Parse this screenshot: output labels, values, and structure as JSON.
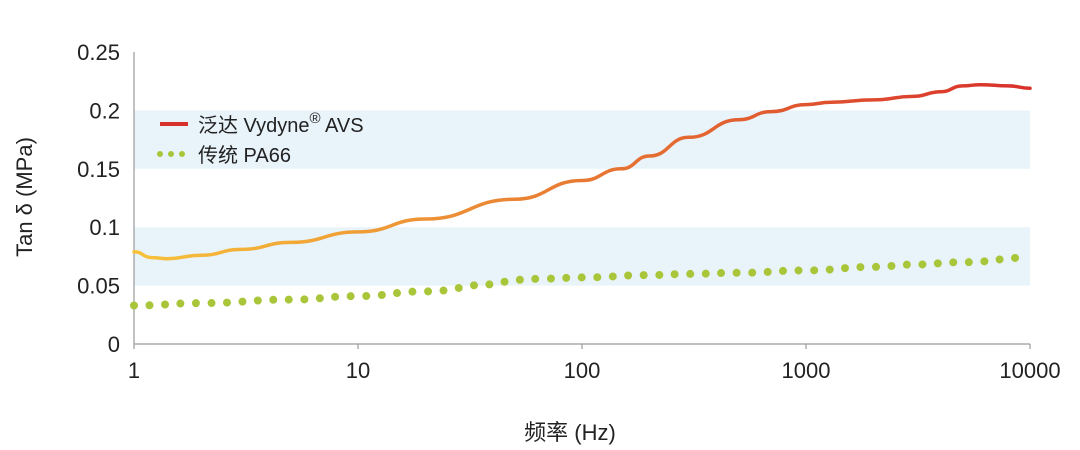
{
  "chart_data": {
    "type": "line",
    "xlabel": "频率 (Hz)",
    "ylabel": "Tan δ (MPa)",
    "x_scale": "log",
    "xlim": [
      1,
      10000
    ],
    "ylim": [
      0,
      0.25
    ],
    "x_ticks": [
      "1",
      "10",
      "100",
      "1000",
      "10000"
    ],
    "y_ticks": [
      "0",
      "0.05",
      "0.1",
      "0.15",
      "0.2",
      "0.25"
    ],
    "grid": "alternating horizontal bands",
    "legend_position": "top-left",
    "colors": {
      "band": "#e8f3fa",
      "series1_start": "#f7c23a",
      "series1_end": "#d8302b",
      "series2": "#a9c63a"
    },
    "series": [
      {
        "name": "泛达 Vydyne",
        "name_superscript": "®",
        "name_suffix": " AVS",
        "style": "solid",
        "x": [
          1,
          1.2,
          1.4,
          2,
          3,
          5,
          10,
          20,
          50,
          100,
          150,
          200,
          300,
          500,
          700,
          1000,
          1300,
          2000,
          3000,
          4000,
          5000,
          6000,
          8000,
          10000
        ],
        "y": [
          0.079,
          0.074,
          0.073,
          0.076,
          0.081,
          0.087,
          0.096,
          0.107,
          0.124,
          0.14,
          0.15,
          0.161,
          0.177,
          0.192,
          0.199,
          0.205,
          0.207,
          0.209,
          0.212,
          0.216,
          0.221,
          0.222,
          0.221,
          0.219
        ]
      },
      {
        "name": "传统 PA66",
        "style": "dotted",
        "x": [
          1,
          2,
          5,
          10,
          20,
          40,
          50,
          70,
          100,
          200,
          300,
          500,
          1000,
          2000,
          3000,
          5000,
          10000
        ],
        "y": [
          0.033,
          0.035,
          0.038,
          0.041,
          0.045,
          0.051,
          0.055,
          0.056,
          0.057,
          0.059,
          0.06,
          0.061,
          0.063,
          0.066,
          0.068,
          0.07,
          0.074
        ]
      }
    ]
  }
}
